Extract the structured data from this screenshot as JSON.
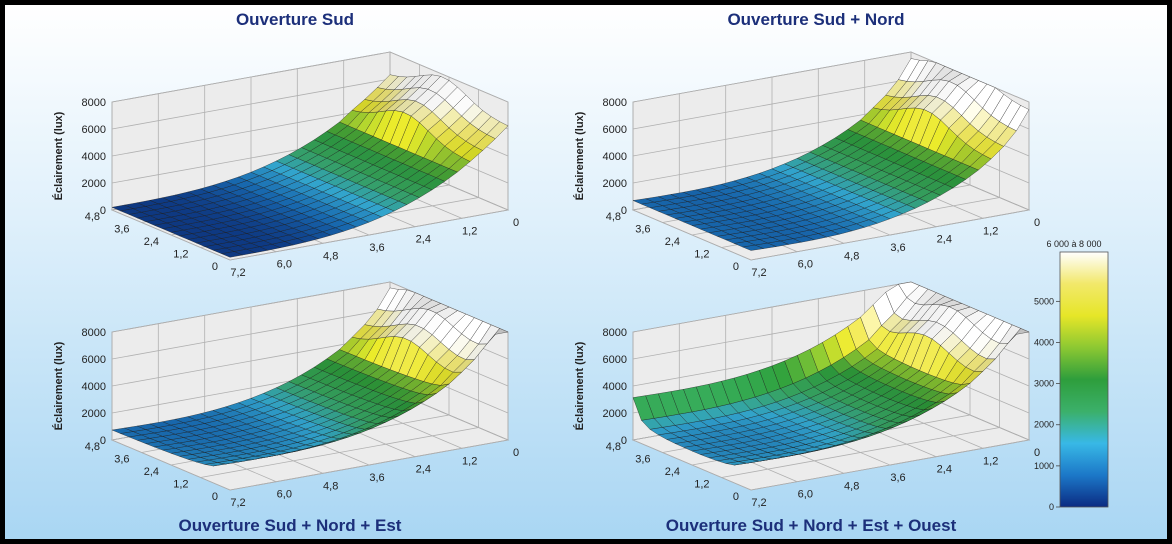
{
  "colorbar": {
    "ticks": [
      "0",
      "1000",
      "2000",
      "3000",
      "4000",
      "5000"
    ],
    "top_label": "6 000 à 8 000",
    "colors": [
      "#0b2b82",
      "#1c78c8",
      "#38b8e6",
      "#3bb06a",
      "#2e9e3c",
      "#8cc832",
      "#e6e628",
      "#f2e86a",
      "#ffffff"
    ]
  },
  "chart_data": [
    {
      "type": "surface",
      "title": "Ouverture Sud",
      "zlabel": "Éclairement (lux)",
      "zlim": [
        0,
        8000
      ],
      "z_ticks": [
        "0",
        "2000",
        "4000",
        "6000",
        "8000"
      ],
      "depth_ticks": [
        "0",
        "1,2",
        "2,4",
        "3,6",
        "4,8"
      ],
      "length_ticks": [
        "0",
        "1,2",
        "2,4",
        "3,6",
        "4,8",
        "6,0",
        "7,2"
      ],
      "openings": [
        "sud"
      ]
    },
    {
      "type": "surface",
      "title": "Ouverture Sud + Nord",
      "zlabel": "Éclairement (lux)",
      "zlim": [
        0,
        8000
      ],
      "z_ticks": [
        "0",
        "2000",
        "4000",
        "6000",
        "8000"
      ],
      "depth_ticks": [
        "0",
        "1,2",
        "2,4",
        "3,6",
        "4,8"
      ],
      "length_ticks": [
        "0",
        "1,2",
        "2,4",
        "3,6",
        "4,8",
        "6,0",
        "7,2"
      ],
      "openings": [
        "sud",
        "nord"
      ]
    },
    {
      "type": "surface",
      "title": "Ouverture Sud + Nord + Est",
      "zlabel": "Éclairement (lux)",
      "zlim": [
        0,
        8000
      ],
      "z_ticks": [
        "0",
        "2000",
        "4000",
        "6000",
        "8000"
      ],
      "depth_ticks": [
        "0",
        "1,2",
        "2,4",
        "3,6",
        "4,8"
      ],
      "length_ticks": [
        "0",
        "1,2",
        "2,4",
        "3,6",
        "4,8",
        "6,0",
        "7,2"
      ],
      "openings": [
        "sud",
        "nord",
        "est"
      ]
    },
    {
      "type": "surface",
      "title": "Ouverture Sud + Nord + Est + Ouest",
      "zlabel": "Éclairement (lux)",
      "zlim": [
        0,
        8000
      ],
      "z_ticks": [
        "0",
        "2000",
        "4000",
        "6000",
        "8000"
      ],
      "depth_ticks": [
        "0",
        "1,2",
        "2,4",
        "3,6",
        "4,8"
      ],
      "length_ticks": [
        "0",
        "1,2",
        "2,4",
        "3,6",
        "4,8",
        "6,0",
        "7,2"
      ],
      "openings": [
        "sud",
        "nord",
        "est",
        "ouest"
      ]
    }
  ]
}
